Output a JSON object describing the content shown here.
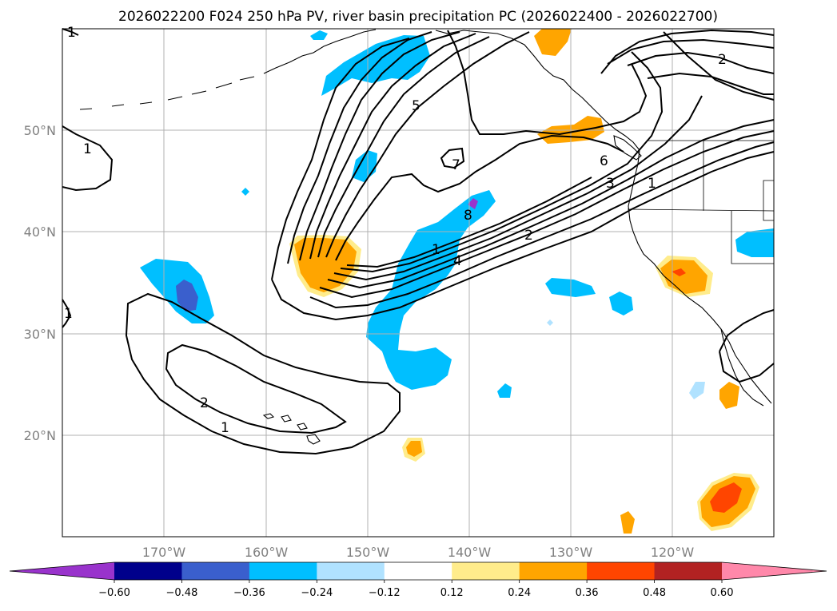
{
  "title": "2026022200 F024 250 hPa PV, river basin precipitation PC (2026022400 - 2026022700)",
  "map": {
    "lat_labels": [
      "50°N",
      "40°N",
      "30°N",
      "20°N"
    ],
    "lon_labels": [
      "170°W",
      "160°W",
      "150°W",
      "140°W",
      "130°W",
      "120°W"
    ]
  },
  "contour_labels": [
    "1",
    "1",
    "1",
    "2",
    "1",
    "5",
    "7",
    "1",
    "4",
    "8",
    "2",
    "6",
    "3",
    "1",
    "2"
  ],
  "colorbar": {
    "ticks": [
      "−0.60",
      "−0.48",
      "−0.36",
      "−0.24",
      "−0.12",
      "0.12",
      "0.24",
      "0.36",
      "0.48",
      "0.60"
    ],
    "colors": [
      "#9933cc",
      "#00008b",
      "#3a5fcd",
      "#00bfff",
      "#b0e2ff",
      "#ffffff",
      "#ffec8b",
      "#ffa500",
      "#ff4500",
      "#b22222",
      "#ff88aa"
    ]
  },
  "palette": {
    "neg_light": "#b0e2ff",
    "neg_mid": "#00bfff",
    "neg_strong": "#3a5fcd",
    "neg_extreme": "#9933cc",
    "pos_light": "#ffec8b",
    "pos_mid": "#ffa500",
    "pos_strong": "#ff4500"
  }
}
